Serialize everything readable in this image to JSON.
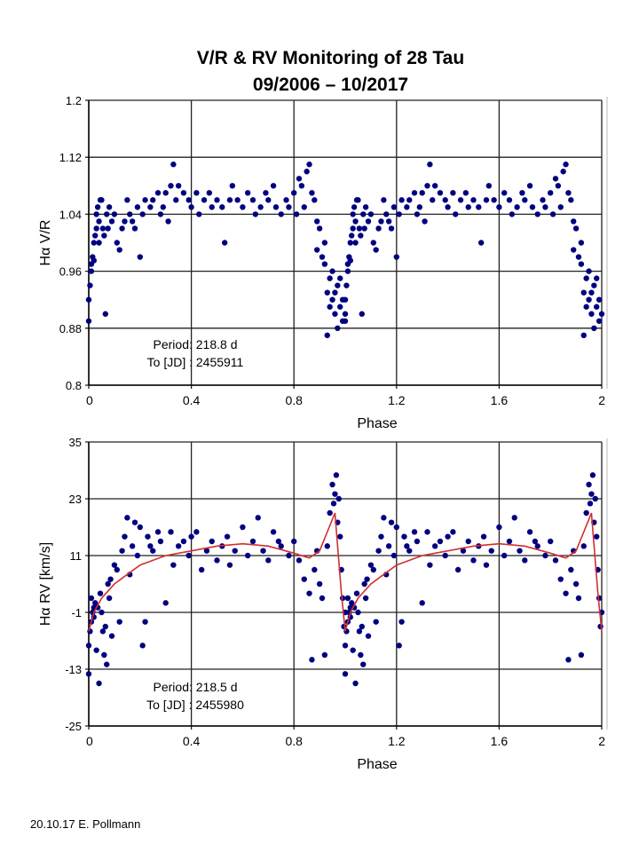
{
  "title": "V/R & RV Monitoring of 28 Tau",
  "subtitle": "09/2006 – 10/2017",
  "footer": "20.10.17 E. Pollmann",
  "colors": {
    "points": "#00007f",
    "fit": "#d03030",
    "grid": "#222222"
  },
  "chart_data": [
    {
      "type": "scatter",
      "xlabel": "Phase",
      "ylabel": "Hα V/R",
      "xlim": [
        0,
        2
      ],
      "ylim": [
        0.8,
        1.2
      ],
      "xticks": [
        "0",
        "0.4",
        "0.8",
        "1.2",
        "1.6",
        "2"
      ],
      "yticks": [
        "1.2",
        "1.12",
        "1.04",
        "0.96",
        "0.88",
        "0.8"
      ],
      "grid": true,
      "phase_cycles_shown": 2,
      "annotation": [
        "Period: 218.8 d",
        "To [JD] : 2455911"
      ],
      "points": [
        [
          0.0,
          0.89
        ],
        [
          0.0,
          0.92
        ],
        [
          0.005,
          0.94
        ],
        [
          0.01,
          0.96
        ],
        [
          0.01,
          0.97
        ],
        [
          0.015,
          0.98
        ],
        [
          0.02,
          1.0
        ],
        [
          0.02,
          0.975
        ],
        [
          0.025,
          1.01
        ],
        [
          0.03,
          1.02
        ],
        [
          0.03,
          1.04
        ],
        [
          0.035,
          1.05
        ],
        [
          0.04,
          1.03
        ],
        [
          0.04,
          1.0
        ],
        [
          0.045,
          1.06
        ],
        [
          0.05,
          1.06
        ],
        [
          0.055,
          1.02
        ],
        [
          0.06,
          1.01
        ],
        [
          0.065,
          0.9
        ],
        [
          0.07,
          1.04
        ],
        [
          0.075,
          1.02
        ],
        [
          0.08,
          1.05
        ],
        [
          0.09,
          1.03
        ],
        [
          0.1,
          1.04
        ],
        [
          0.11,
          1.0
        ],
        [
          0.12,
          0.99
        ],
        [
          0.13,
          1.02
        ],
        [
          0.14,
          1.03
        ],
        [
          0.15,
          1.06
        ],
        [
          0.16,
          1.04
        ],
        [
          0.17,
          1.03
        ],
        [
          0.18,
          1.02
        ],
        [
          0.19,
          1.05
        ],
        [
          0.2,
          0.98
        ],
        [
          0.21,
          1.04
        ],
        [
          0.22,
          1.06
        ],
        [
          0.24,
          1.05
        ],
        [
          0.25,
          1.06
        ],
        [
          0.27,
          1.07
        ],
        [
          0.28,
          1.04
        ],
        [
          0.29,
          1.05
        ],
        [
          0.3,
          1.07
        ],
        [
          0.31,
          1.03
        ],
        [
          0.32,
          1.08
        ],
        [
          0.33,
          1.11
        ],
        [
          0.34,
          1.06
        ],
        [
          0.35,
          1.08
        ],
        [
          0.37,
          1.07
        ],
        [
          0.39,
          1.06
        ],
        [
          0.4,
          1.05
        ],
        [
          0.42,
          1.07
        ],
        [
          0.43,
          1.04
        ],
        [
          0.45,
          1.06
        ],
        [
          0.47,
          1.07
        ],
        [
          0.48,
          1.05
        ],
        [
          0.5,
          1.06
        ],
        [
          0.52,
          1.05
        ],
        [
          0.53,
          1.0
        ],
        [
          0.55,
          1.06
        ],
        [
          0.56,
          1.08
        ],
        [
          0.58,
          1.06
        ],
        [
          0.6,
          1.05
        ],
        [
          0.62,
          1.07
        ],
        [
          0.64,
          1.06
        ],
        [
          0.65,
          1.04
        ],
        [
          0.67,
          1.05
        ],
        [
          0.69,
          1.07
        ],
        [
          0.7,
          1.06
        ],
        [
          0.72,
          1.08
        ],
        [
          0.73,
          1.05
        ],
        [
          0.75,
          1.04
        ],
        [
          0.77,
          1.06
        ],
        [
          0.78,
          1.05
        ],
        [
          0.8,
          1.07
        ],
        [
          0.81,
          1.04
        ],
        [
          0.82,
          1.09
        ],
        [
          0.83,
          1.08
        ],
        [
          0.84,
          1.05
        ],
        [
          0.85,
          1.1
        ],
        [
          0.86,
          1.11
        ],
        [
          0.87,
          1.07
        ],
        [
          0.88,
          1.06
        ],
        [
          0.89,
          1.03
        ],
        [
          0.89,
          0.99
        ],
        [
          0.9,
          1.02
        ],
        [
          0.91,
          0.98
        ],
        [
          0.92,
          1.0
        ],
        [
          0.92,
          0.97
        ],
        [
          0.93,
          0.93
        ],
        [
          0.93,
          0.87
        ],
        [
          0.94,
          0.95
        ],
        [
          0.94,
          0.91
        ],
        [
          0.95,
          0.96
        ],
        [
          0.95,
          0.92
        ],
        [
          0.96,
          0.93
        ],
        [
          0.96,
          0.9
        ],
        [
          0.97,
          0.94
        ],
        [
          0.97,
          0.88
        ],
        [
          0.98,
          0.91
        ],
        [
          0.98,
          0.95
        ],
        [
          0.99,
          0.89
        ],
        [
          0.99,
          0.92
        ],
        [
          1.0,
          0.9
        ]
      ]
    },
    {
      "type": "scatter",
      "xlabel": "Phase",
      "ylabel": "Hα RV [km/s]",
      "xlim": [
        0,
        2
      ],
      "ylim": [
        -25,
        35
      ],
      "xticks": [
        "0",
        "0.4",
        "0.8",
        "1.2",
        "1.6",
        "2"
      ],
      "yticks": [
        "35",
        "23",
        "11",
        "-1",
        "-13",
        "-25"
      ],
      "grid": true,
      "phase_cycles_shown": 2,
      "annotation": [
        "Period: 218.5 d",
        "To [JD] : 2455980"
      ],
      "points": [
        [
          0,
          -8
        ],
        [
          0,
          -14
        ],
        [
          0.005,
          -5
        ],
        [
          0.01,
          -3
        ],
        [
          0.01,
          2
        ],
        [
          0.015,
          -1
        ],
        [
          0.02,
          0
        ],
        [
          0.02,
          -2
        ],
        [
          0.025,
          1
        ],
        [
          0.03,
          -9
        ],
        [
          0.035,
          0
        ],
        [
          0.04,
          -16
        ],
        [
          0.045,
          3
        ],
        [
          0.05,
          -1
        ],
        [
          0.055,
          -5
        ],
        [
          0.06,
          -10
        ],
        [
          0.065,
          -4
        ],
        [
          0.07,
          -12
        ],
        [
          0.075,
          5
        ],
        [
          0.08,
          2
        ],
        [
          0.085,
          6
        ],
        [
          0.09,
          -6
        ],
        [
          0.1,
          9
        ],
        [
          0.11,
          8
        ],
        [
          0.12,
          -3
        ],
        [
          0.13,
          12
        ],
        [
          0.14,
          15
        ],
        [
          0.15,
          19
        ],
        [
          0.16,
          7
        ],
        [
          0.17,
          13
        ],
        [
          0.18,
          18
        ],
        [
          0.19,
          11
        ],
        [
          0.2,
          17
        ],
        [
          0.21,
          -8
        ],
        [
          0.22,
          -3
        ],
        [
          0.23,
          15
        ],
        [
          0.24,
          13
        ],
        [
          0.25,
          12
        ],
        [
          0.27,
          16
        ],
        [
          0.28,
          14
        ],
        [
          0.3,
          1
        ],
        [
          0.32,
          16
        ],
        [
          0.33,
          9
        ],
        [
          0.35,
          13
        ],
        [
          0.37,
          14
        ],
        [
          0.39,
          11
        ],
        [
          0.4,
          15
        ],
        [
          0.42,
          16
        ],
        [
          0.44,
          8
        ],
        [
          0.46,
          12
        ],
        [
          0.48,
          14
        ],
        [
          0.5,
          10
        ],
        [
          0.52,
          13
        ],
        [
          0.54,
          15
        ],
        [
          0.55,
          9
        ],
        [
          0.57,
          12
        ],
        [
          0.6,
          17
        ],
        [
          0.62,
          11
        ],
        [
          0.64,
          14
        ],
        [
          0.66,
          19
        ],
        [
          0.68,
          12
        ],
        [
          0.7,
          10
        ],
        [
          0.72,
          16
        ],
        [
          0.74,
          14
        ],
        [
          0.75,
          13
        ],
        [
          0.78,
          11
        ],
        [
          0.8,
          14
        ],
        [
          0.82,
          10
        ],
        [
          0.84,
          6
        ],
        [
          0.86,
          3
        ],
        [
          0.87,
          -11
        ],
        [
          0.88,
          8
        ],
        [
          0.89,
          12
        ],
        [
          0.9,
          5
        ],
        [
          0.91,
          2
        ],
        [
          0.92,
          -10
        ],
        [
          0.93,
          13
        ],
        [
          0.94,
          20
        ],
        [
          0.95,
          26
        ],
        [
          0.955,
          22
        ],
        [
          0.96,
          24
        ],
        [
          0.965,
          28
        ],
        [
          0.97,
          18
        ],
        [
          0.975,
          23
        ],
        [
          0.98,
          15
        ],
        [
          0.985,
          8
        ],
        [
          0.99,
          2
        ],
        [
          0.995,
          -4
        ],
        [
          1.0,
          -1
        ]
      ],
      "fit_curve": [
        [
          0,
          -5
        ],
        [
          0.02,
          -1
        ],
        [
          0.05,
          2
        ],
        [
          0.1,
          5
        ],
        [
          0.15,
          7
        ],
        [
          0.2,
          9
        ],
        [
          0.3,
          11
        ],
        [
          0.4,
          12
        ],
        [
          0.5,
          13
        ],
        [
          0.6,
          13.5
        ],
        [
          0.7,
          13
        ],
        [
          0.8,
          11.5
        ],
        [
          0.86,
          10.5
        ],
        [
          0.9,
          12
        ],
        [
          0.93,
          16
        ],
        [
          0.96,
          20
        ],
        [
          0.985,
          3
        ],
        [
          1.0,
          -5
        ]
      ]
    }
  ]
}
